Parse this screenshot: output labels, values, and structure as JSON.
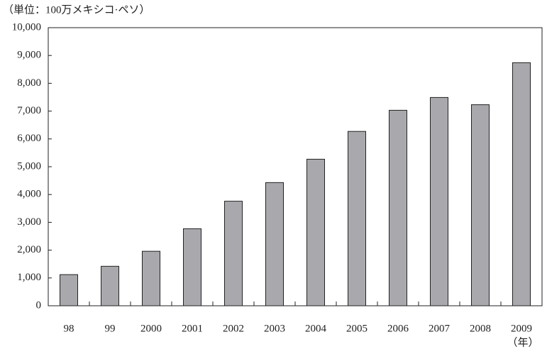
{
  "chart_data": {
    "type": "bar",
    "title": "（単位：100万メキシコ·ペソ）",
    "x_label": "（年）",
    "categories": [
      "98",
      "99",
      "2000",
      "2001",
      "2002",
      "2003",
      "2004",
      "2005",
      "2006",
      "2007",
      "2008",
      "2009"
    ],
    "values": [
      1120,
      1420,
      1960,
      2770,
      3760,
      4430,
      5270,
      6270,
      7030,
      7490,
      7230,
      8740
    ],
    "color": "#a9a9ad",
    "ylim": [
      0,
      10000
    ],
    "yticks": [
      0,
      {
        "value": 1000,
        "label": "1,000"
      },
      {
        "value": 2000,
        "label": "2,000"
      },
      {
        "value": 3000,
        "label": "3,000"
      },
      {
        "value": 4000,
        "label": "4,000"
      },
      {
        "value": 5000,
        "label": "5,000"
      },
      {
        "value": 6000,
        "label": "6,000"
      },
      {
        "value": 7000,
        "label": "7,000"
      },
      {
        "value": 8000,
        "label": "8,000"
      },
      {
        "value": 9000,
        "label": "9,000"
      },
      {
        "value": 10000,
        "label": "10,000"
      }
    ],
    "grid": false
  }
}
